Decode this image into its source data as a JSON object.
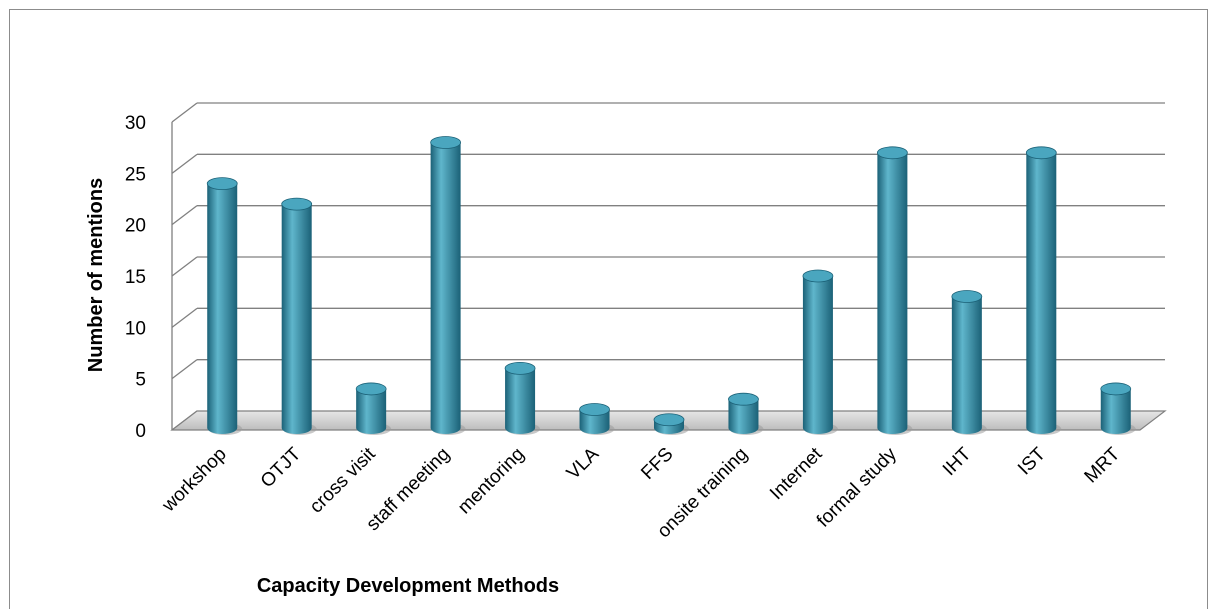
{
  "chart_data": {
    "type": "bar",
    "style": "3d-cylinder",
    "categories": [
      "workshop",
      "OTJT",
      "cross visit",
      "staff meeting",
      "mentoring",
      "VLA",
      "FFS",
      "onsite training",
      "Internet",
      "formal study",
      "IHT",
      "IST",
      "MRT"
    ],
    "values": [
      24,
      22,
      4,
      28,
      6,
      2,
      1,
      3,
      15,
      27,
      13,
      27,
      4
    ],
    "xlabel": "Capacity Development Methods",
    "ylabel": "Number of mentions",
    "ylim": [
      0,
      30
    ],
    "yticks": [
      "0",
      "5",
      "10",
      "15",
      "20",
      "25",
      "30"
    ],
    "grid": true,
    "legend": "none",
    "colors": {
      "bar": "#2e8ba8",
      "bar_light": "#5fb6cc",
      "bar_dark": "#1b6177",
      "top": "#4aa6bf",
      "grid": "#808080",
      "floor": "#c8c8c8"
    }
  }
}
